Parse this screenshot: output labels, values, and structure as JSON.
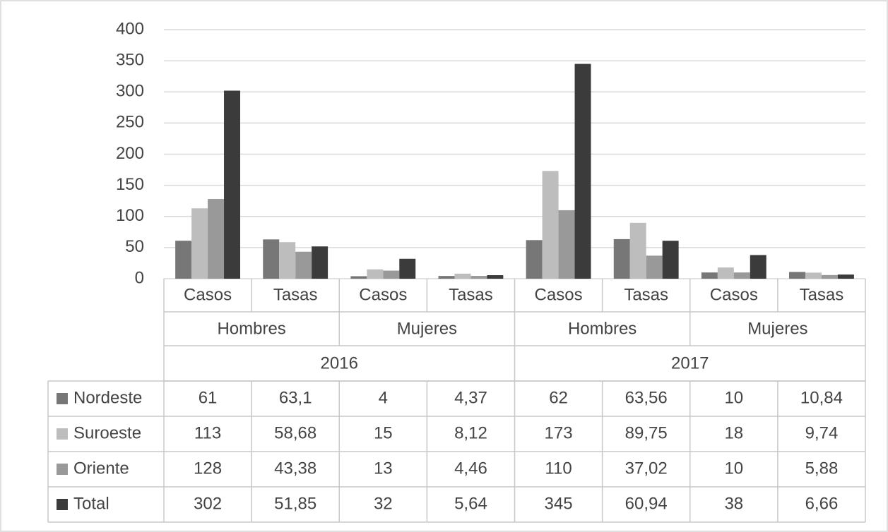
{
  "chart_data": {
    "type": "bar",
    "categories": [
      "Casos",
      "Tasas",
      "Casos",
      "Tasas",
      "Casos",
      "Tasas",
      "Casos",
      "Tasas"
    ],
    "subgroups": [
      "Hombres",
      "Mujeres",
      "Hombres",
      "Mujeres"
    ],
    "years": [
      "2016",
      "2017"
    ],
    "series": [
      {
        "name": "Nordeste",
        "color": "#777777",
        "values": [
          61,
          63.1,
          4,
          4.37,
          62,
          63.56,
          10,
          10.84
        ],
        "value_labels": [
          "61",
          "63,1",
          "4",
          "4,37",
          "62",
          "63,56",
          "10",
          "10,84"
        ]
      },
      {
        "name": "Suroeste",
        "color": "#bdbdbd",
        "values": [
          113,
          58.68,
          15,
          8.12,
          173,
          89.75,
          18,
          9.74
        ],
        "value_labels": [
          "113",
          "58,68",
          "15",
          "8,12",
          "173",
          "89,75",
          "18",
          "9,74"
        ]
      },
      {
        "name": "Oriente",
        "color": "#999999",
        "values": [
          128,
          43.38,
          13,
          4.46,
          110,
          37.02,
          10,
          5.88
        ],
        "value_labels": [
          "128",
          "43,38",
          "13",
          "4,46",
          "110",
          "37,02",
          "10",
          "5,88"
        ]
      },
      {
        "name": "Total",
        "color": "#3b3b3b",
        "values": [
          302,
          51.85,
          32,
          5.64,
          345,
          60.94,
          38,
          6.66
        ],
        "value_labels": [
          "302",
          "51,85",
          "32",
          "5,64",
          "345",
          "60,94",
          "38",
          "6,66"
        ]
      }
    ],
    "ylim": [
      0,
      400
    ],
    "yticks": [
      0,
      50,
      100,
      150,
      200,
      250,
      300,
      350,
      400
    ],
    "grid": true
  }
}
